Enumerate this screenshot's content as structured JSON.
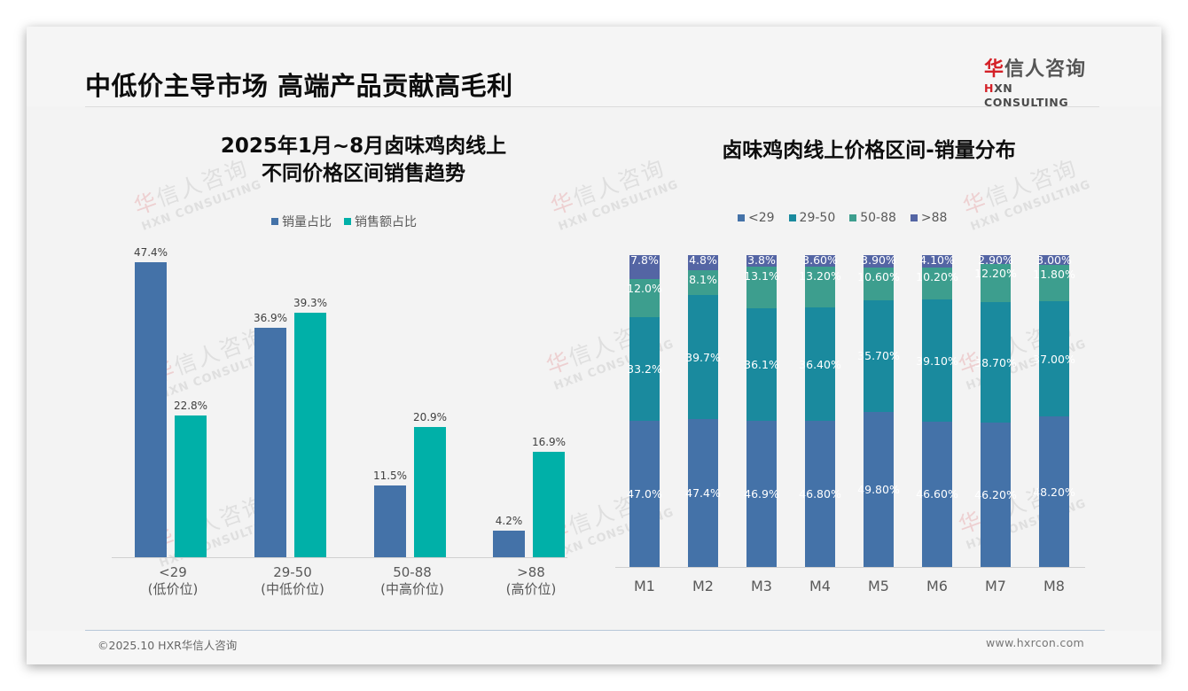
{
  "header": {
    "title": "中低价主导市场 高端产品贡献高毛利",
    "logo": {
      "cn_accent": "华",
      "cn_rest": "信人咨询",
      "en_accent": "H",
      "en_rest": "XN CONSULTING"
    }
  },
  "watermark": {
    "cn_accent": "华",
    "cn_rest": "信人咨询",
    "en": "HXN CONSULTING"
  },
  "colors": {
    "volume": "#4472a8",
    "sales": "#00b0a8",
    "lt29": "#4472a8",
    "r29_50": "#1a8a9e",
    "r50_88": "#3d9e8e",
    "gt88": "#5465a4"
  },
  "chart_data": [
    {
      "type": "bar",
      "title": "2025年1月~8月卤味鸡肉线上 不同价格区间销售趋势",
      "title_lines": [
        "2025年1月~8月卤味鸡肉线上",
        "不同价格区间销售趋势"
      ],
      "categories": [
        "<29",
        "29-50",
        "50-88",
        ">88"
      ],
      "category_sublabels": [
        "(低价位)",
        "(中低价位)",
        "(中高价位)",
        "(高价位)"
      ],
      "series": [
        {
          "name": "销量占比",
          "values": [
            47.4,
            36.9,
            11.5,
            4.2
          ],
          "labels": [
            "47.4%",
            "36.9%",
            "11.5%",
            "4.2%"
          ]
        },
        {
          "name": "销售额占比",
          "values": [
            22.8,
            39.3,
            20.9,
            16.9
          ],
          "labels": [
            "22.8%",
            "39.3%",
            "20.9%",
            "16.9%"
          ]
        }
      ],
      "xlabel": "",
      "ylabel": "",
      "ylim": [
        0,
        50
      ],
      "grid": false,
      "legend_position": "top"
    },
    {
      "type": "bar",
      "stacked": true,
      "title": "卤味鸡肉线上价格区间-销量分布",
      "categories": [
        "M1",
        "M2",
        "M3",
        "M4",
        "M5",
        "M6",
        "M7",
        "M8"
      ],
      "series": [
        {
          "name": "<29",
          "values": [
            47.0,
            47.4,
            46.9,
            46.8,
            49.8,
            46.6,
            46.2,
            48.2
          ],
          "labels": [
            "47.0%",
            "47.4%",
            "46.9%",
            "46.80%",
            "49.80%",
            "46.60%",
            "46.20%",
            "48.20%"
          ]
        },
        {
          "name": "29-50",
          "values": [
            33.2,
            39.7,
            36.1,
            36.4,
            35.7,
            39.1,
            38.7,
            37.0
          ],
          "labels": [
            "33.2%",
            "39.7%",
            "36.1%",
            "36.40%",
            "35.70%",
            "39.10%",
            "38.70%",
            "37.00%"
          ]
        },
        {
          "name": "50-88",
          "values": [
            12.0,
            8.1,
            13.1,
            13.2,
            10.6,
            10.2,
            12.2,
            11.8
          ],
          "labels": [
            "12.0%",
            "8.1%",
            "13.1%",
            "13.20%",
            "10.60%",
            "10.20%",
            "12.20%",
            "11.80%"
          ]
        },
        {
          "name": ">88",
          "values": [
            7.8,
            4.8,
            3.8,
            3.6,
            3.9,
            4.1,
            2.9,
            3.0
          ],
          "labels": [
            "7.8%",
            "4.8%",
            "3.8%",
            "3.60%",
            "3.90%",
            "4.10%",
            "2.90%",
            "3.00%"
          ]
        }
      ],
      "xlabel": "",
      "ylabel": "",
      "ylim": [
        0,
        100
      ],
      "grid": false,
      "legend_position": "top"
    }
  ],
  "footer": {
    "copyright": "©2025.10 HXR华信人咨询",
    "website": "www.hxrcon.com"
  }
}
